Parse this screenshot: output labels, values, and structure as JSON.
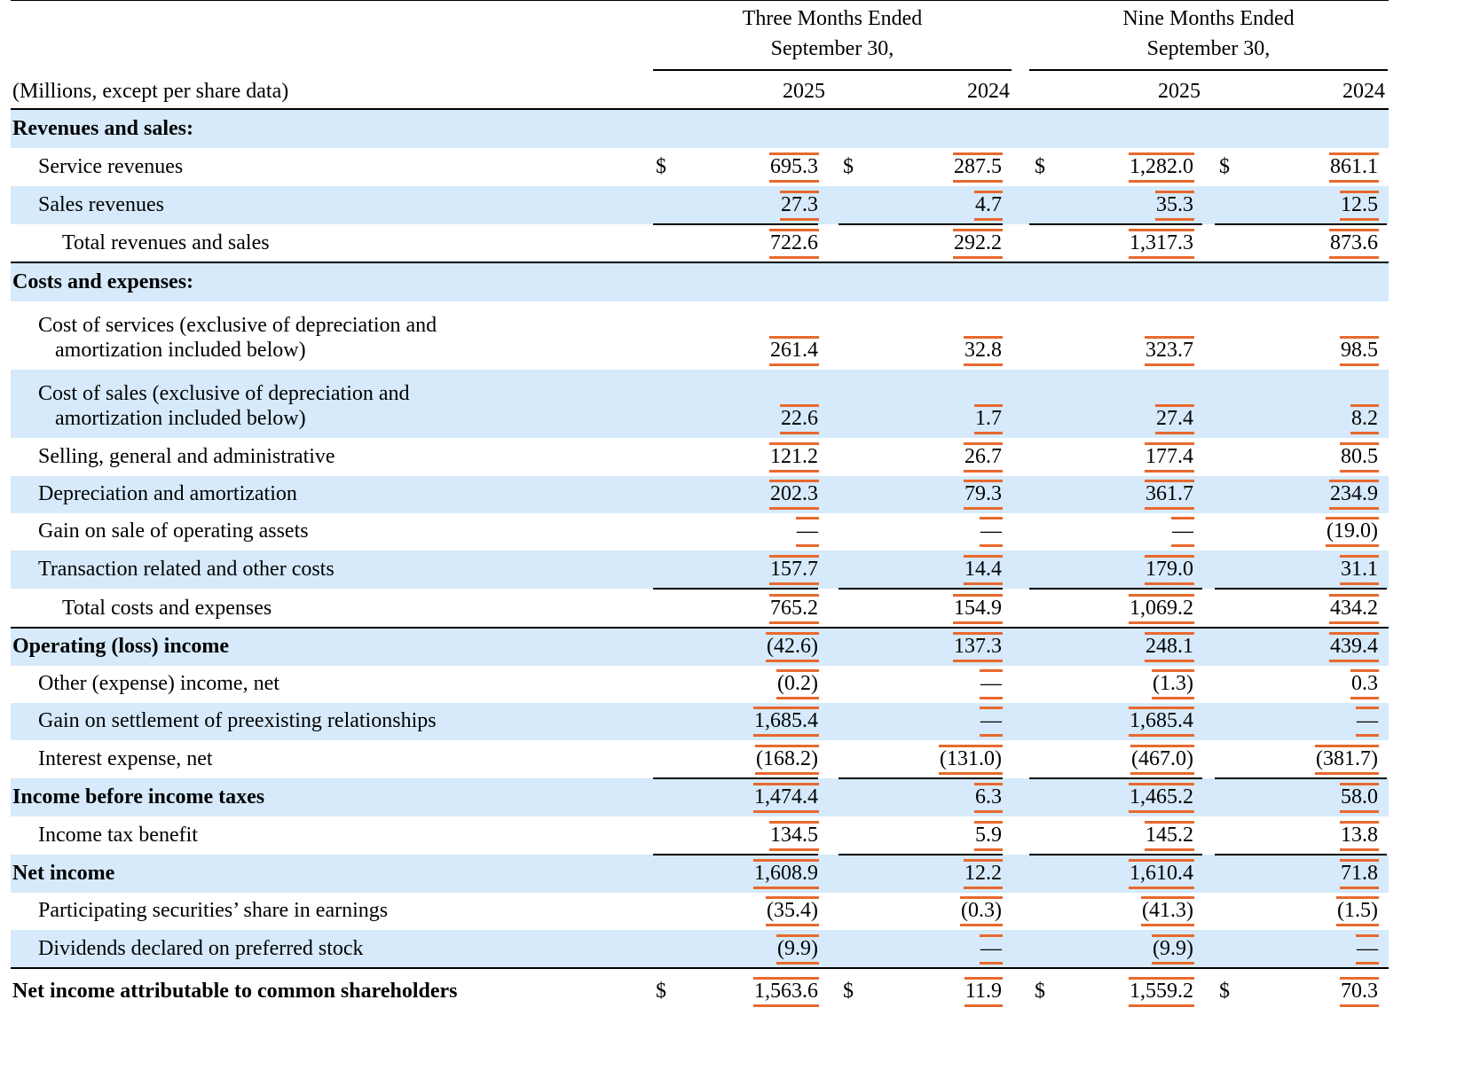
{
  "header": {
    "units_label": "(Millions, except per share data)",
    "group1_line1": "Three Months Ended",
    "group1_line2": "September 30,",
    "group2_line1": "Nine Months Ended",
    "group2_line2": "September 30,",
    "years": [
      "2025",
      "2024",
      "2025",
      "2024"
    ]
  },
  "currency_symbol": "$",
  "rows": [
    {
      "label": "Revenues and sales:",
      "bold": true,
      "values": [
        "",
        "",
        "",
        ""
      ]
    },
    {
      "label": "Service revenues",
      "values": [
        "695.3",
        "287.5",
        "1,282.0",
        "861.1"
      ],
      "dollar": true
    },
    {
      "label": "Sales revenues",
      "values": [
        "27.3",
        "4.7",
        "35.3",
        "12.5"
      ]
    },
    {
      "label": "Total revenues and sales",
      "values": [
        "722.6",
        "292.2",
        "1,317.3",
        "873.6"
      ]
    },
    {
      "label": "Costs and expenses:",
      "bold": true,
      "values": [
        "",
        "",
        "",
        ""
      ]
    },
    {
      "label": "Cost of services (exclusive of depreciation and",
      "label2": "amortization included below)",
      "values": [
        "261.4",
        "32.8",
        "323.7",
        "98.5"
      ]
    },
    {
      "label": "Cost of sales (exclusive of depreciation and",
      "label2": "amortization included below)",
      "values": [
        "22.6",
        "1.7",
        "27.4",
        "8.2"
      ]
    },
    {
      "label": "Selling, general and administrative",
      "values": [
        "121.2",
        "26.7",
        "177.4",
        "80.5"
      ]
    },
    {
      "label": "Depreciation and amortization",
      "values": [
        "202.3",
        "79.3",
        "361.7",
        "234.9"
      ]
    },
    {
      "label": "Gain on sale of operating assets",
      "values": [
        "—",
        "—",
        "—",
        "(19.0)"
      ]
    },
    {
      "label": "Transaction related and other costs",
      "values": [
        "157.7",
        "14.4",
        "179.0",
        "31.1"
      ]
    },
    {
      "label": "Total costs and expenses",
      "values": [
        "765.2",
        "154.9",
        "1,069.2",
        "434.2"
      ]
    },
    {
      "label": "Operating (loss) income",
      "bold": true,
      "values": [
        "(42.6)",
        "137.3",
        "248.1",
        "439.4"
      ]
    },
    {
      "label": "Other (expense) income, net",
      "values": [
        "(0.2)",
        "—",
        "(1.3)",
        "0.3"
      ]
    },
    {
      "label": "Gain on settlement of preexisting relationships",
      "values": [
        "1,685.4",
        "—",
        "1,685.4",
        "—"
      ]
    },
    {
      "label": "Interest expense, net",
      "values": [
        "(168.2)",
        "(131.0)",
        "(467.0)",
        "(381.7)"
      ]
    },
    {
      "label": "Income before income taxes",
      "bold": true,
      "values": [
        "1,474.4",
        "6.3",
        "1,465.2",
        "58.0"
      ]
    },
    {
      "label": "Income tax benefit",
      "values": [
        "134.5",
        "5.9",
        "145.2",
        "13.8"
      ]
    },
    {
      "label": "Net income",
      "bold": true,
      "values": [
        "1,608.9",
        "12.2",
        "1,610.4",
        "71.8"
      ]
    },
    {
      "label": "Participating securities’ share in earnings",
      "values": [
        "(35.4)",
        "(0.3)",
        "(41.3)",
        "(1.5)"
      ]
    },
    {
      "label": "Dividends declared on preferred stock",
      "values": [
        "(9.9)",
        "—",
        "(9.9)",
        "—"
      ]
    },
    {
      "label": "Net income attributable to common shareholders",
      "bold": true,
      "values": [
        "1,563.6",
        "11.9",
        "1,559.2",
        "70.3"
      ],
      "dollar": true
    }
  ]
}
